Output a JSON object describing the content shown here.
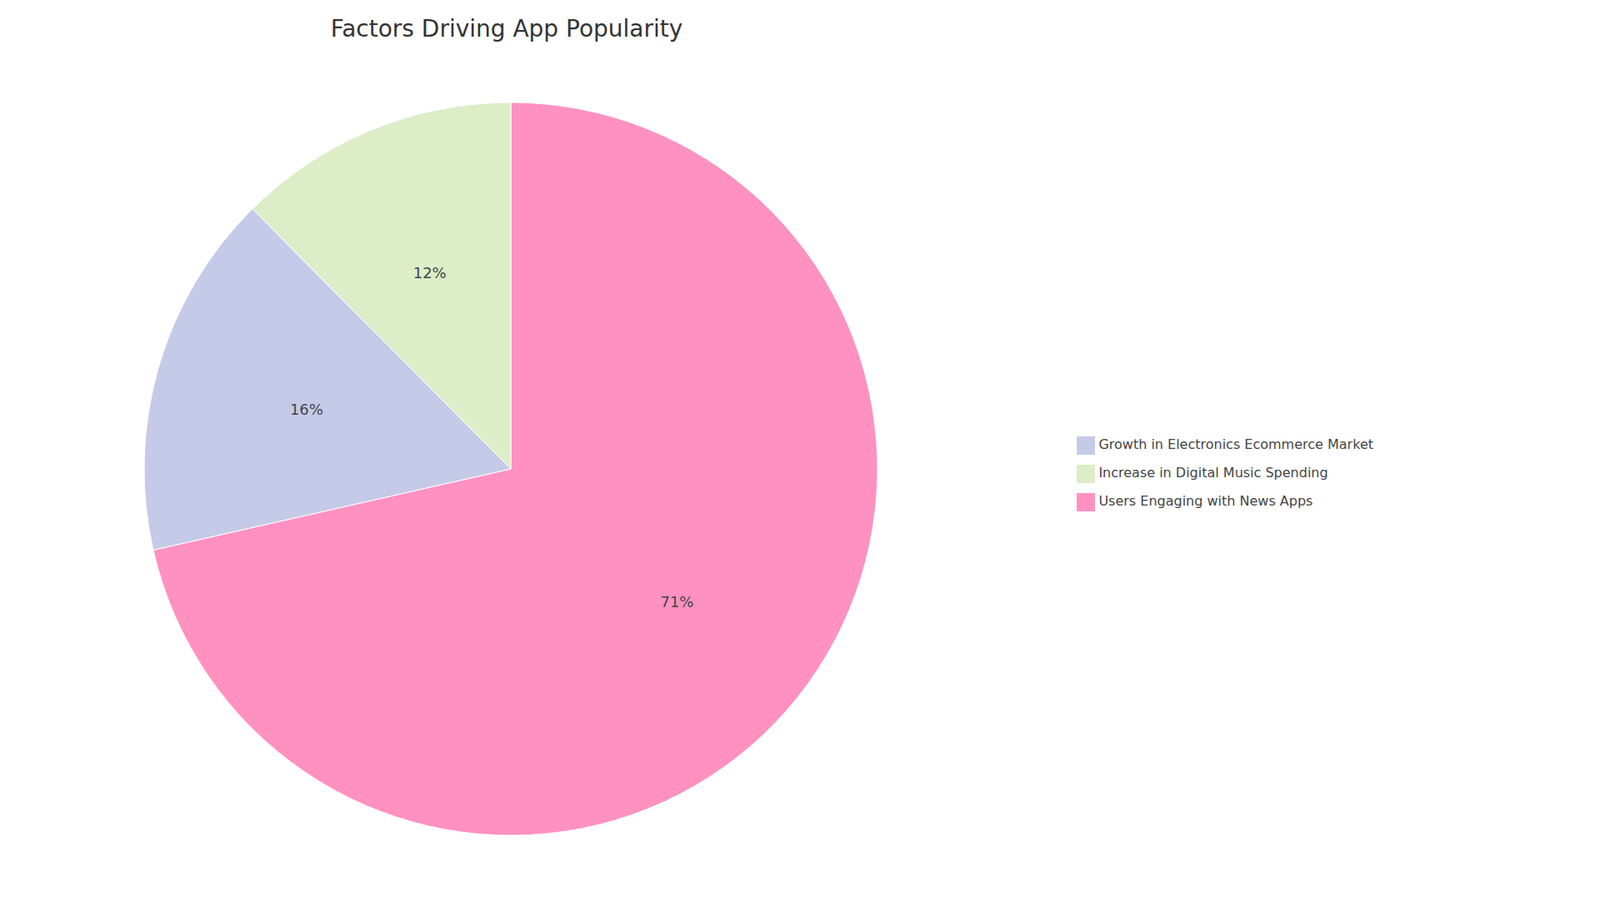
{
  "chart_data": {
    "type": "pie",
    "title": "Factors Driving App Popularity",
    "categories": [
      "Users Engaging with News Apps",
      "Growth in Electronics Ecommerce Market",
      "Increase in Digital Music Spending"
    ],
    "values": [
      68.3,
      15.4,
      11.9
    ],
    "value_labels": [
      "71%",
      "16%",
      "12%"
    ],
    "colors": [
      "#FF91C1",
      "#C5CAE9",
      "#DCEDC8"
    ],
    "data_labels": true,
    "legend": "right"
  }
}
